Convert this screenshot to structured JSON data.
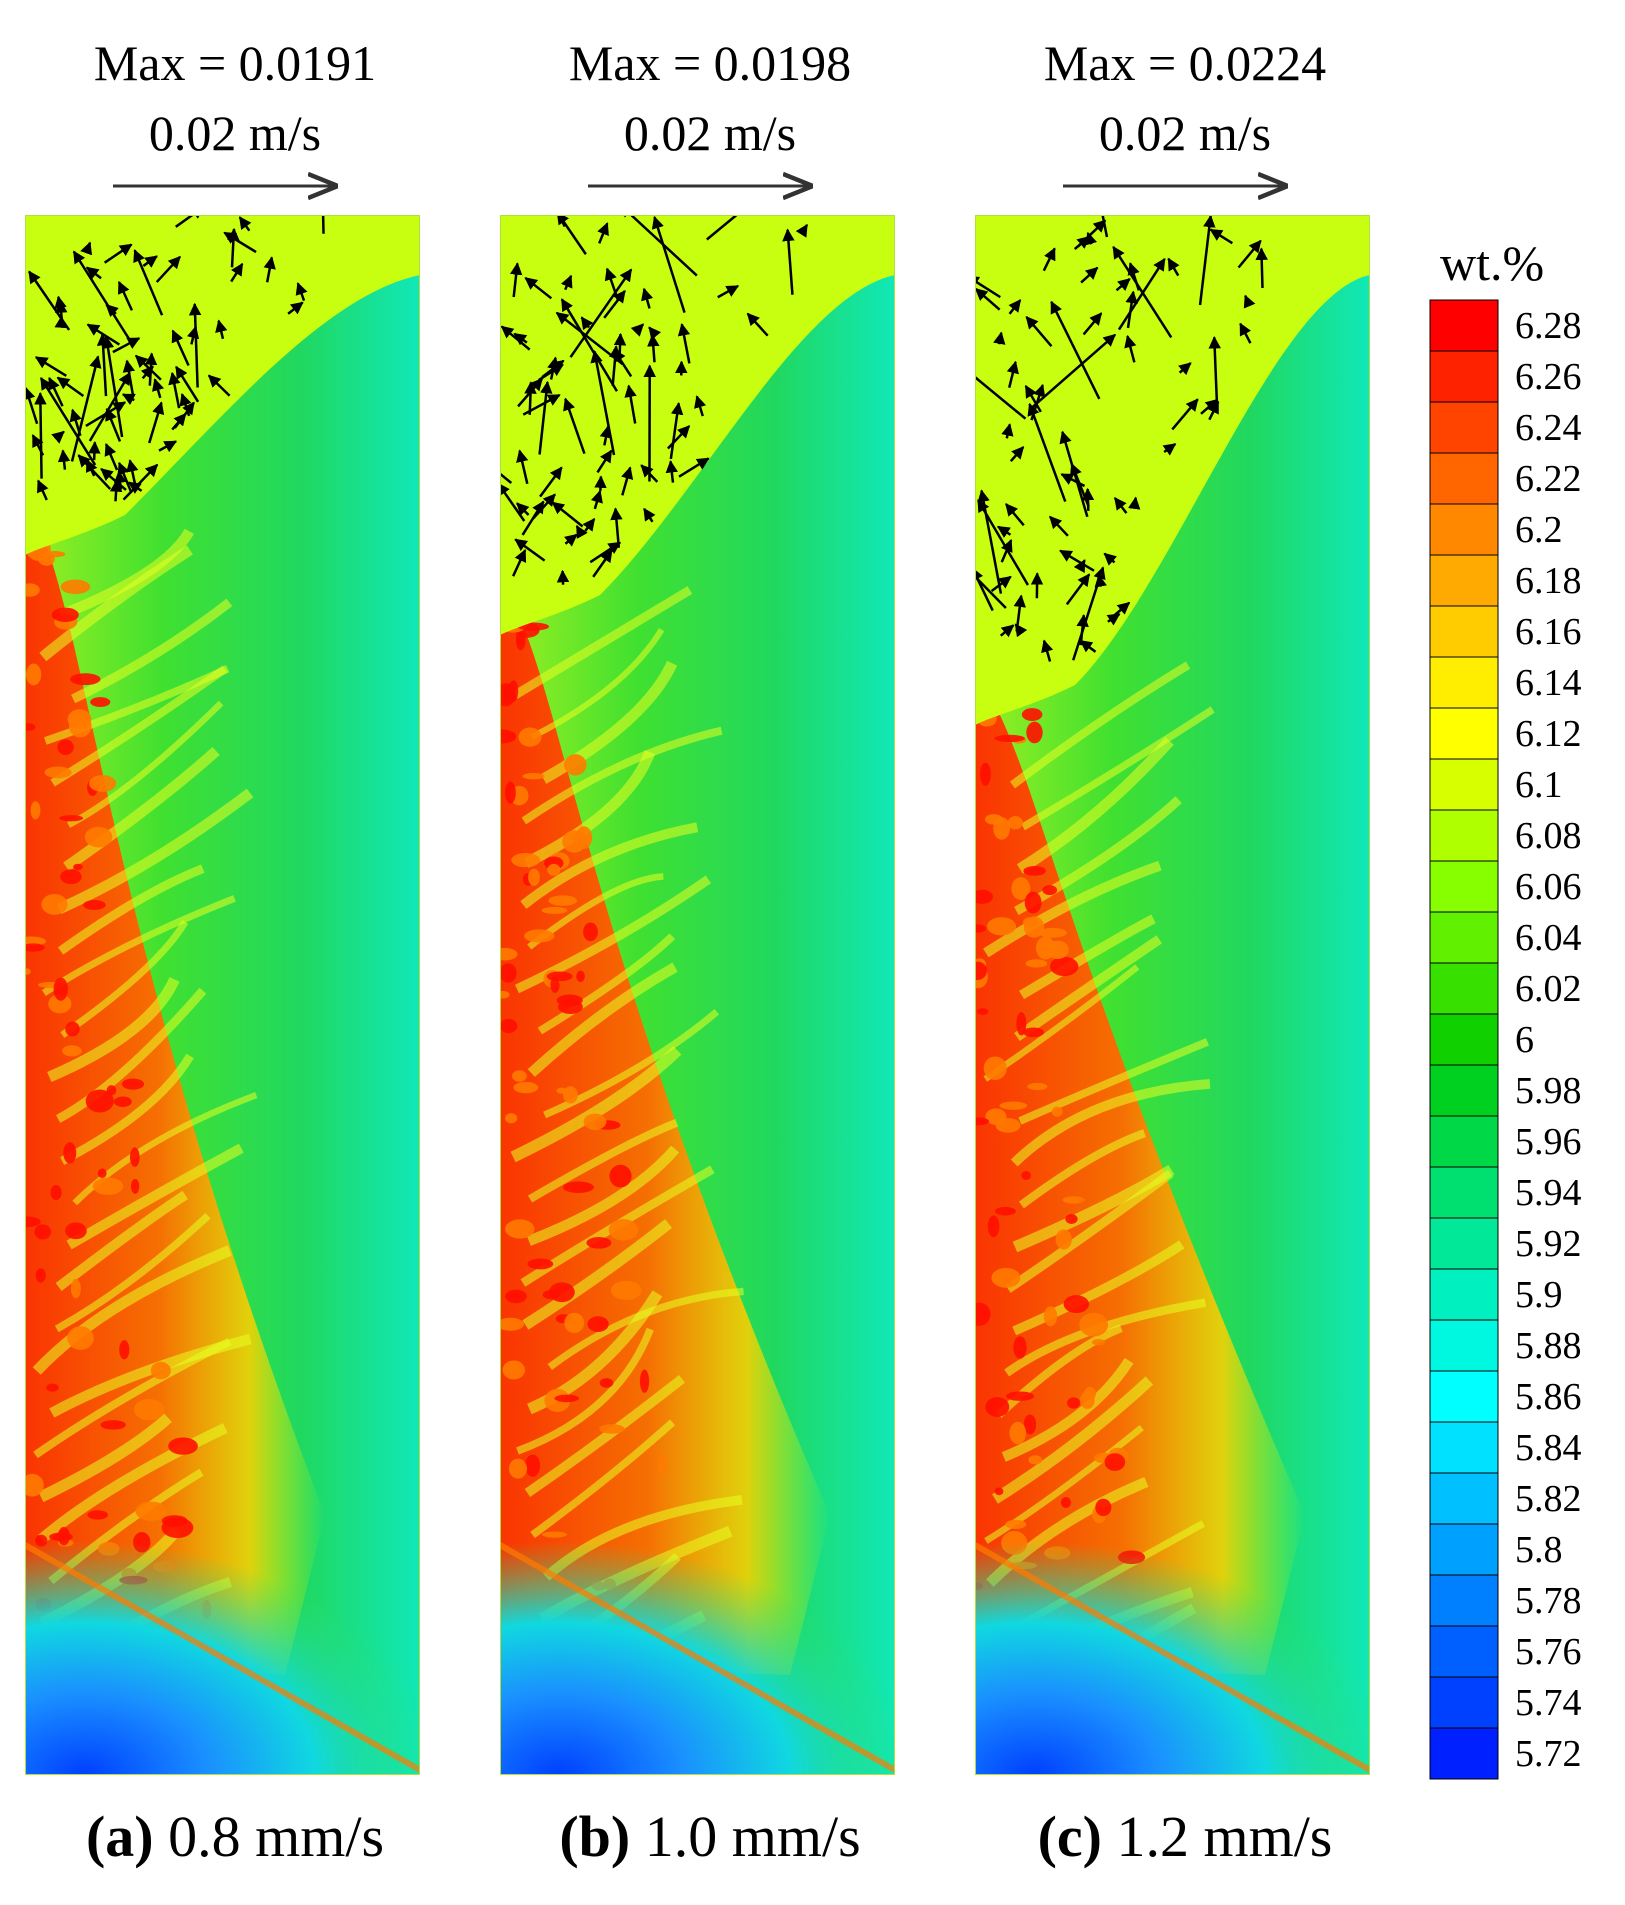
{
  "chart_data": {
    "type": "heatmap",
    "colorbar": {
      "title": "wt.%",
      "ticks": [
        "6.28",
        "6.26",
        "6.24",
        "6.22",
        "6.2",
        "6.18",
        "6.16",
        "6.14",
        "6.12",
        "6.1",
        "6.08",
        "6.06",
        "6.04",
        "6.02",
        "6",
        "5.98",
        "5.96",
        "5.94",
        "5.92",
        "5.9",
        "5.88",
        "5.86",
        "5.84",
        "5.82",
        "5.8",
        "5.78",
        "5.76",
        "5.74",
        "5.72"
      ],
      "range": [
        5.72,
        6.28
      ],
      "placement": "right",
      "colors": [
        "#ff0000",
        "#ff2200",
        "#ff4400",
        "#ff6600",
        "#ff8800",
        "#ffaa00",
        "#ffcc00",
        "#ffee00",
        "#ffff00",
        "#d8ff00",
        "#b0ff00",
        "#88ff00",
        "#60f000",
        "#38e000",
        "#10d000",
        "#00d020",
        "#00d848",
        "#00e070",
        "#00e898",
        "#00f0c0",
        "#00f8e0",
        "#00ffff",
        "#00e0ff",
        "#00c0ff",
        "#00a0ff",
        "#0080ff",
        "#0060ff",
        "#0040ff",
        "#0020ff"
      ]
    },
    "panels": [
      {
        "id": "a",
        "label": "(a)",
        "speed": "0.8 mm/s",
        "max_text": "Max = 0.0191",
        "ref_vector_text": "0.02 m/s",
        "max_velocity": 0.0191,
        "reference_velocity": 0.02
      },
      {
        "id": "b",
        "label": "(b)",
        "speed": "1.0 mm/s",
        "max_text": "Max = 0.0198",
        "ref_vector_text": "0.02 m/s",
        "max_velocity": 0.0198,
        "reference_velocity": 0.02
      },
      {
        "id": "c",
        "label": "(c)",
        "speed": "1.2 mm/s",
        "max_text": "Max = 0.0224",
        "ref_vector_text": "0.02 m/s",
        "max_velocity": 0.0224,
        "reference_velocity": 0.02
      }
    ]
  }
}
